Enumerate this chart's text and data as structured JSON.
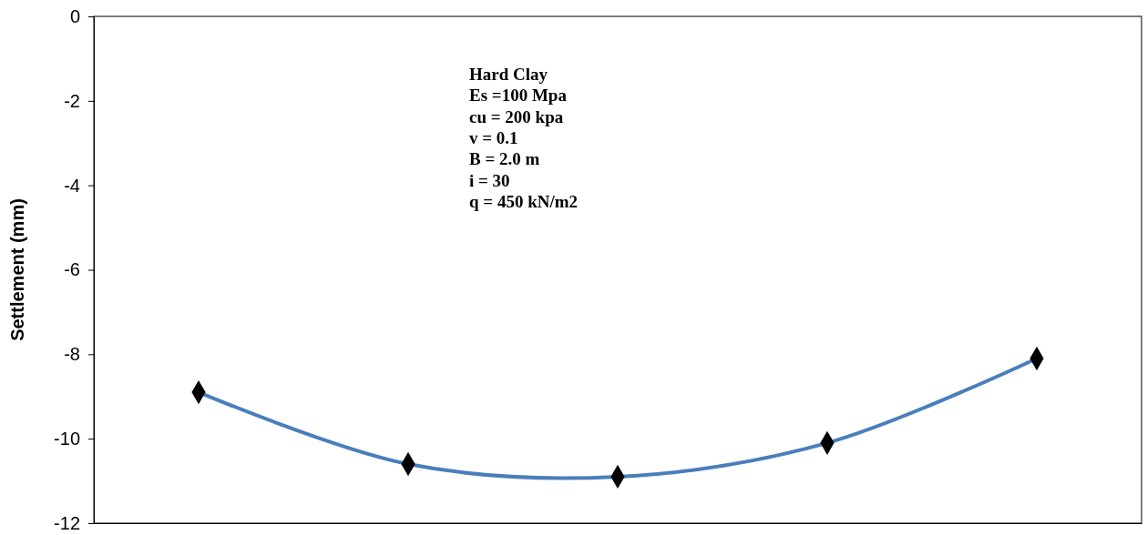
{
  "chart_data": {
    "type": "line",
    "ylabel": "Settlement (mm)",
    "categories": [
      null,
      null,
      null,
      null,
      null
    ],
    "series": [
      {
        "color": "#4a7ebb",
        "values": [
          -8.9,
          -10.6,
          -10.9,
          -10.1,
          -8.1
        ]
      }
    ],
    "ylim": [
      -12,
      0
    ],
    "yticks": [
      -12,
      -10,
      -8,
      -6,
      -4,
      -2,
      0
    ],
    "marker": "diamond",
    "grid": false,
    "annotations": [
      "Hard Clay",
      "Es =100 Mpa",
      "cu = 200 kpa",
      "v = 0.1",
      "B = 2.0 m",
      "i = 30",
      "q = 450 kN/m2"
    ]
  }
}
